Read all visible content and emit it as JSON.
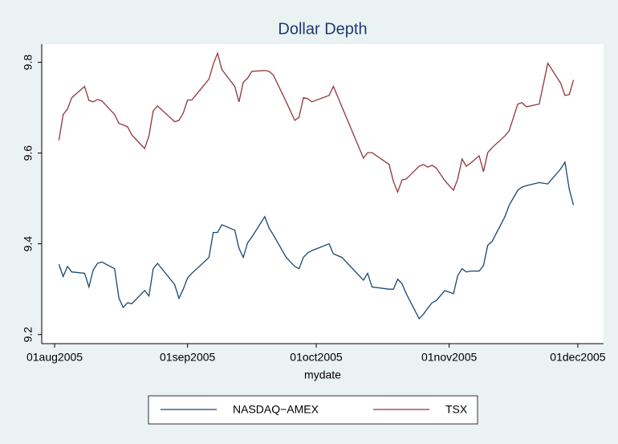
{
  "chart_data": {
    "type": "line",
    "title": "Dollar Depth",
    "x_label": "mydate",
    "x": [
      "2005-08-02",
      "2005-08-03",
      "2005-08-04",
      "2005-08-05",
      "2005-08-08",
      "2005-08-09",
      "2005-08-10",
      "2005-08-11",
      "2005-08-12",
      "2005-08-15",
      "2005-08-16",
      "2005-08-17",
      "2005-08-18",
      "2005-08-19",
      "2005-08-22",
      "2005-08-23",
      "2005-08-24",
      "2005-08-25",
      "2005-08-29",
      "2005-08-30",
      "2005-08-31",
      "2005-09-01",
      "2005-09-02",
      "2005-09-06",
      "2005-09-07",
      "2005-09-08",
      "2005-09-09",
      "2005-09-12",
      "2005-09-13",
      "2005-09-14",
      "2005-09-15",
      "2005-09-16",
      "2005-09-19",
      "2005-09-20",
      "2005-09-21",
      "2005-09-24",
      "2005-09-26",
      "2005-09-27",
      "2005-09-28",
      "2005-09-29",
      "2005-09-30",
      "2005-10-04",
      "2005-10-05",
      "2005-10-07",
      "2005-10-12",
      "2005-10-13",
      "2005-10-14",
      "2005-10-18",
      "2005-10-19",
      "2005-10-20",
      "2005-10-21",
      "2005-10-22",
      "2005-10-25",
      "2005-10-26",
      "2005-10-27",
      "2005-10-28",
      "2005-10-29",
      "2005-10-31",
      "2005-11-02",
      "2005-11-03",
      "2005-11-04",
      "2005-11-05",
      "2005-11-06",
      "2005-11-08",
      "2005-11-09",
      "2005-11-10",
      "2005-11-11",
      "2005-11-14",
      "2005-11-15",
      "2005-11-17",
      "2005-11-18",
      "2005-11-19",
      "2005-11-22",
      "2005-11-24",
      "2005-11-27",
      "2005-11-28",
      "2005-11-29",
      "2005-11-30"
    ],
    "series": [
      {
        "name": "NASDAQ−AMEX",
        "color": "#1a476f",
        "values": [
          9.355,
          9.328,
          9.35,
          9.338,
          9.335,
          9.305,
          9.342,
          9.357,
          9.36,
          9.345,
          9.28,
          9.26,
          9.27,
          9.268,
          9.297,
          9.285,
          9.345,
          9.357,
          9.31,
          9.28,
          9.3,
          9.325,
          9.335,
          9.37,
          9.425,
          9.425,
          9.442,
          9.43,
          9.39,
          9.37,
          9.402,
          9.415,
          9.46,
          9.435,
          9.42,
          9.37,
          9.35,
          9.345,
          9.37,
          9.38,
          9.385,
          9.4,
          9.378,
          9.37,
          9.32,
          9.335,
          9.305,
          9.3,
          9.3,
          9.322,
          9.312,
          9.29,
          9.235,
          9.245,
          9.258,
          9.27,
          9.275,
          9.297,
          9.29,
          9.33,
          9.345,
          9.338,
          9.34,
          9.34,
          9.352,
          9.397,
          9.405,
          9.46,
          9.485,
          9.518,
          9.525,
          9.528,
          9.535,
          9.532,
          9.565,
          9.58,
          9.52,
          9.485
        ]
      },
      {
        "name": "TSX",
        "color": "#90353b",
        "values": [
          9.628,
          9.685,
          9.697,
          9.722,
          9.747,
          9.716,
          9.713,
          9.718,
          9.715,
          9.685,
          9.665,
          9.662,
          9.658,
          9.64,
          9.61,
          9.638,
          9.693,
          9.704,
          9.669,
          9.672,
          9.688,
          9.717,
          9.717,
          9.763,
          9.796,
          9.82,
          9.784,
          9.747,
          9.713,
          9.756,
          9.765,
          9.78,
          9.782,
          9.78,
          9.772,
          9.713,
          9.672,
          9.679,
          9.722,
          9.72,
          9.713,
          9.727,
          9.747,
          9.702,
          9.589,
          9.601,
          9.601,
          9.575,
          9.537,
          9.514,
          9.541,
          9.543,
          9.571,
          9.575,
          9.569,
          9.573,
          9.567,
          9.539,
          9.518,
          9.543,
          9.587,
          9.571,
          9.578,
          9.594,
          9.559,
          9.601,
          9.612,
          9.638,
          9.649,
          9.708,
          9.711,
          9.702,
          9.708,
          9.798,
          9.754,
          9.727,
          9.729,
          9.761
        ]
      }
    ],
    "xlim": [
      "2005-07-29",
      "2005-12-07"
    ],
    "xticks": [
      {
        "value": "2005-08-01",
        "label": "01aug2005"
      },
      {
        "value": "2005-09-01",
        "label": "01sep2005"
      },
      {
        "value": "2005-10-01",
        "label": "01oct2005"
      },
      {
        "value": "2005-11-01",
        "label": "01nov2005"
      },
      {
        "value": "2005-12-01",
        "label": "01dec2005"
      }
    ],
    "ylim": [
      9.18,
      9.84
    ],
    "yticks": [
      9.2,
      9.4,
      9.6,
      9.8
    ],
    "legend": "bottom"
  }
}
